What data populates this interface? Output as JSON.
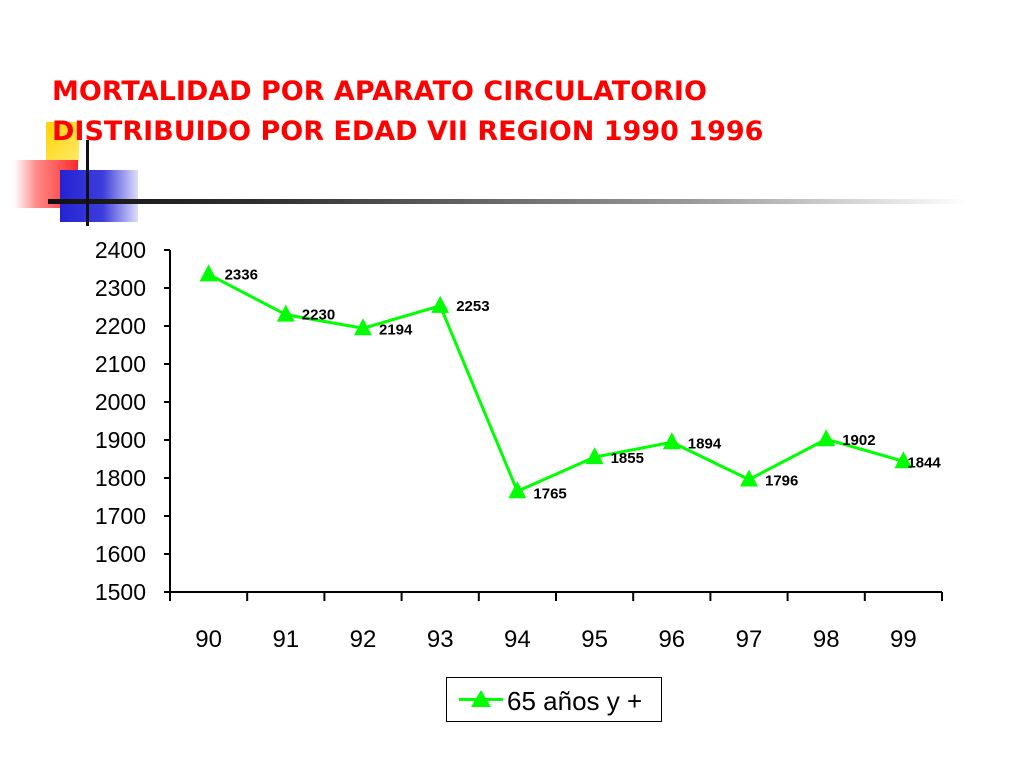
{
  "title": {
    "line1": "MORTALIDAD POR APARATO CIRCULATORIO",
    "line2": "DISTRIBUIDO POR EDAD VII REGION 1990 1996"
  },
  "colors": {
    "title": "#ff0000",
    "series": "#00ff00"
  },
  "chart_data": {
    "type": "line",
    "title": "MORTALIDAD POR APARATO CIRCULATORIO DISTRIBUIDO POR EDAD VII REGION 1990 1996",
    "xlabel": "",
    "ylabel": "",
    "categories": [
      "90",
      "91",
      "92",
      "93",
      "94",
      "95",
      "96",
      "97",
      "98",
      "99"
    ],
    "ylim": [
      1500,
      2400
    ],
    "yticks": [
      2400,
      2300,
      2200,
      2100,
      2000,
      1900,
      1800,
      1700,
      1600,
      1500
    ],
    "grid": false,
    "legend": "bottom-center",
    "marker": "triangle",
    "series": [
      {
        "name": "65 años y +",
        "values": [
          2336,
          2230,
          2194,
          2253,
          1765,
          1855,
          1894,
          1796,
          1902,
          1844
        ],
        "labels": [
          "2336",
          "2230",
          "2194",
          "2253",
          "1765",
          "1855",
          "1894",
          "1796",
          "1902",
          "1844"
        ]
      }
    ]
  }
}
